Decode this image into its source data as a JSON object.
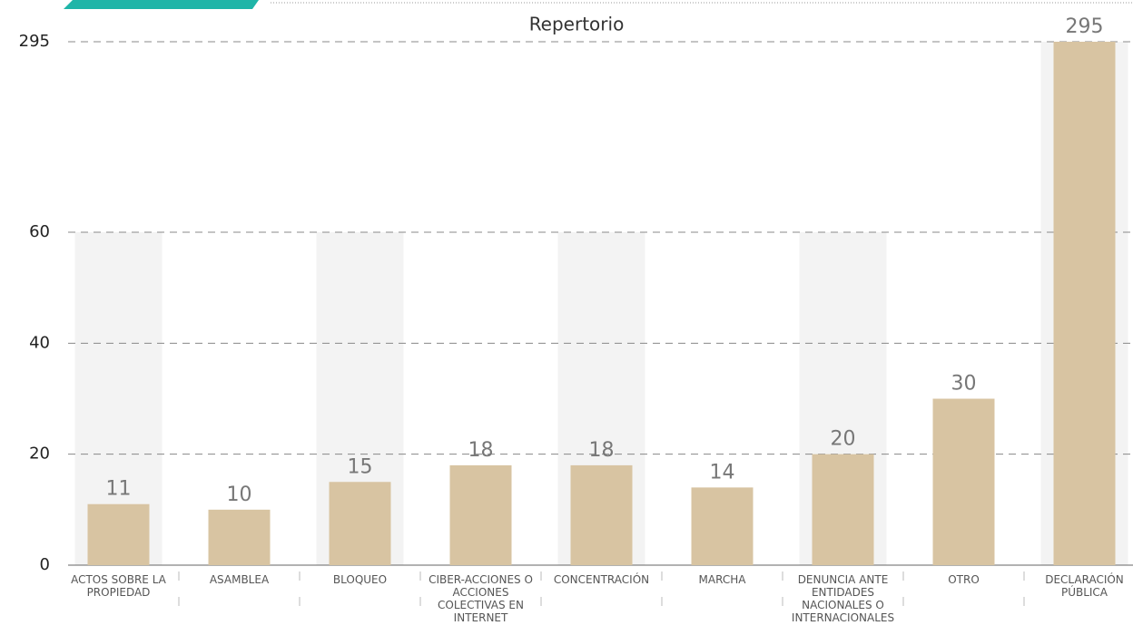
{
  "chart_data": {
    "type": "bar",
    "title": "Repertorio",
    "categories": [
      "ACTOS SOBRE LA PROPIEDAD",
      "ASAMBLEA",
      "BLOQUEO",
      "CIBER-ACCIONES O ACCIONES COLECTIVAS EN INTERNET",
      "CONCENTRACIÓN",
      "MARCHA",
      "DENUNCIA ANTE ENTIDADES NACIONALES O INTERNACIONALES",
      "OTRO",
      "DECLARACIÓN PÚBLICA"
    ],
    "values": [
      11,
      10,
      15,
      18,
      18,
      14,
      20,
      30,
      295
    ],
    "color": "#d8c4a2",
    "ylim": [
      0,
      295
    ],
    "yticks": [
      0,
      20,
      40,
      60,
      295
    ],
    "axis_break": true,
    "grid": true
  }
}
